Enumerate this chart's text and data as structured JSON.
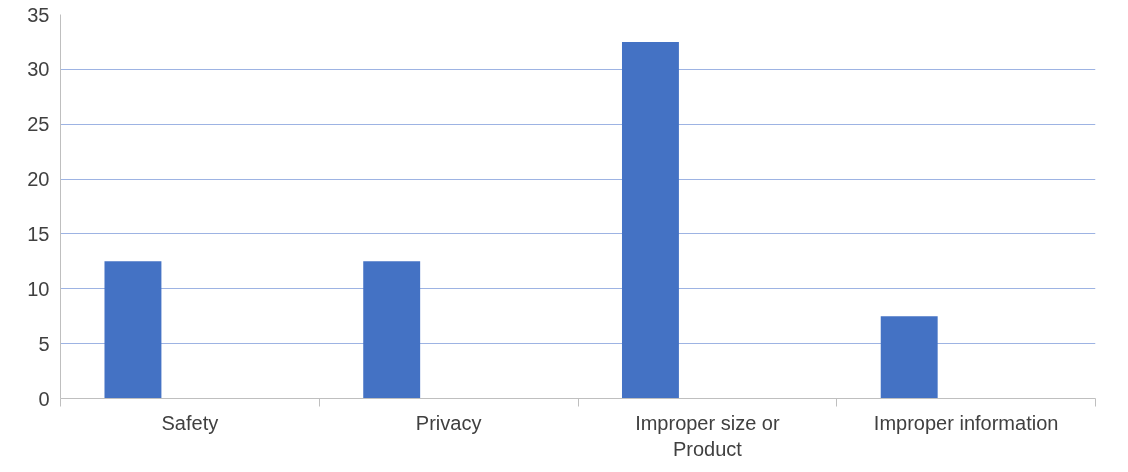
{
  "chart_data": {
    "type": "bar",
    "categories": [
      "Safety",
      "Privacy",
      "Improper size or Product",
      "Improper information"
    ],
    "series": [
      {
        "color": "#4472c4",
        "values": [
          12.5,
          12.5,
          32.5,
          7.5
        ]
      }
    ],
    "ylim": [
      0,
      35
    ],
    "yticks": [
      0,
      5,
      10,
      15,
      20,
      25,
      30,
      35
    ],
    "grid": "y"
  }
}
